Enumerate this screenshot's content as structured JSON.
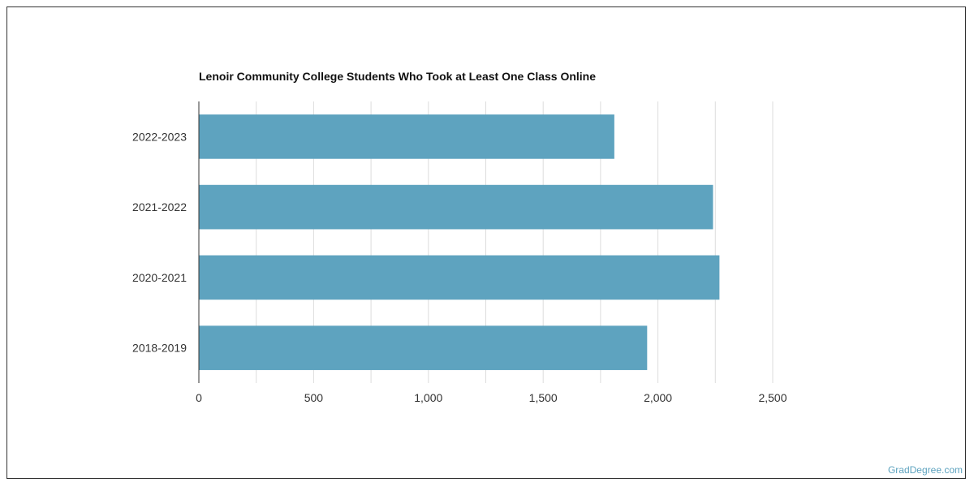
{
  "chart_data": {
    "type": "bar",
    "orientation": "horizontal",
    "title": "Lenoir Community College Students Who Took at Least One Class Online",
    "xlabel": "",
    "ylabel": "",
    "categories": [
      "2022-2023",
      "2021-2022",
      "2020-2021",
      "2018-2019"
    ],
    "values": [
      1810,
      2240,
      2268,
      1953
    ],
    "xlim": [
      0,
      2500
    ],
    "xticks": [
      0,
      500,
      1000,
      1500,
      2000,
      2500
    ],
    "xtick_labels": [
      "0",
      "500",
      "1,000",
      "1,500",
      "2,000",
      "2,500"
    ],
    "grid": true,
    "bar_color": "#5ea3bf",
    "grid_color": "#dddddd"
  },
  "watermark": "GradDegree.com"
}
